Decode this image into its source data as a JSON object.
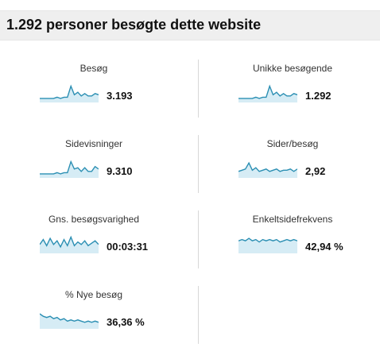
{
  "header": {
    "title": "1.292 personer besøgte dette website"
  },
  "colors": {
    "spark_line": "#2b8fb3",
    "spark_fill": "#d6ecf5"
  },
  "metrics": [
    {
      "label": "Besøg",
      "value": "3.193",
      "trend": [
        2,
        2,
        2,
        2,
        2,
        3,
        2,
        3,
        3,
        12,
        5,
        7,
        4,
        6,
        4,
        4,
        6,
        5
      ]
    },
    {
      "label": "Unikke besøgende",
      "value": "1.292",
      "trend": [
        2,
        2,
        2,
        2,
        2,
        3,
        2,
        3,
        3,
        12,
        5,
        7,
        4,
        6,
        4,
        4,
        6,
        5
      ]
    },
    {
      "label": "Sidevisninger",
      "value": "9.310",
      "trend": [
        2,
        2,
        2,
        2,
        2,
        3,
        2,
        3,
        3,
        12,
        6,
        7,
        4,
        7,
        4,
        4,
        8,
        6
      ]
    },
    {
      "label": "Sider/besøg",
      "value": "2,92",
      "trend": [
        4,
        5,
        6,
        11,
        5,
        7,
        4,
        5,
        6,
        4,
        5,
        6,
        4,
        5,
        5,
        6,
        4,
        6
      ]
    },
    {
      "label": "Gns. besøgsvarighed",
      "value": "00:03:31",
      "trend": [
        6,
        10,
        5,
        11,
        6,
        9,
        4,
        10,
        5,
        12,
        5,
        8,
        6,
        9,
        5,
        7,
        9,
        6
      ]
    },
    {
      "label": "Enkeltsidefrekvens",
      "value": "42,94 %",
      "trend": [
        9,
        10,
        9,
        11,
        9,
        10,
        8,
        10,
        9,
        10,
        9,
        10,
        8,
        9,
        10,
        9,
        10,
        9
      ]
    },
    {
      "label": "% Nye besøg",
      "value": "36,36 %",
      "trend": [
        11,
        9,
        8,
        9,
        7,
        8,
        6,
        7,
        5,
        6,
        5,
        6,
        5,
        4,
        5,
        4,
        5,
        4
      ]
    }
  ]
}
